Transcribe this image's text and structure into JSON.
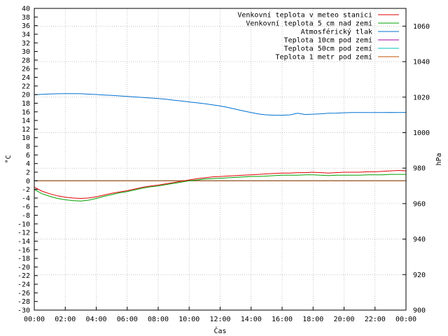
{
  "chart_data": {
    "type": "line",
    "xlabel": "Čas",
    "ylabel_left": "°C",
    "ylabel_right": "hPa",
    "x_ticks": [
      "00:00",
      "02:00",
      "04:00",
      "06:00",
      "08:00",
      "10:00",
      "12:00",
      "14:00",
      "16:00",
      "18:00",
      "20:00",
      "22:00",
      "00:00"
    ],
    "y_left_range": [
      -30,
      40
    ],
    "y_left_step": 2,
    "y_right_range": [
      900,
      1070
    ],
    "y_right_ticks": [
      900,
      920,
      940,
      960,
      980,
      1000,
      1020,
      1040,
      1060
    ],
    "grid": true,
    "legend_position": "top-right",
    "x_hours": [
      0,
      0.5,
      1,
      1.5,
      2,
      2.5,
      3,
      3.5,
      4,
      4.5,
      5,
      5.5,
      6,
      6.5,
      7,
      7.5,
      8,
      8.5,
      9,
      9.5,
      10,
      10.5,
      11,
      11.5,
      12,
      12.5,
      13,
      13.5,
      14,
      14.5,
      15,
      15.5,
      16,
      16.5,
      17,
      17.5,
      18,
      18.5,
      19,
      19.5,
      20,
      20.5,
      21,
      21.5,
      22,
      22.5,
      23,
      23.5,
      24
    ],
    "series": [
      {
        "name": "Venkovní teplota v meteo stanici",
        "color": "#e00000",
        "axis": "left",
        "values": [
          -1.5,
          -2.4,
          -3.0,
          -3.5,
          -3.8,
          -4.0,
          -4.1,
          -4.0,
          -3.7,
          -3.3,
          -2.9,
          -2.6,
          -2.3,
          -1.9,
          -1.5,
          -1.2,
          -1.0,
          -0.7,
          -0.4,
          -0.1,
          0.2,
          0.5,
          0.7,
          0.9,
          1.0,
          1.1,
          1.2,
          1.3,
          1.4,
          1.5,
          1.6,
          1.7,
          1.8,
          1.8,
          1.9,
          1.9,
          2.0,
          1.9,
          1.8,
          1.9,
          2.0,
          2.0,
          2.0,
          2.1,
          2.1,
          2.2,
          2.3,
          2.4,
          2.3
        ]
      },
      {
        "name": "Venkovní teplota 5 cm nad zemí",
        "color": "#00a000",
        "axis": "left",
        "values": [
          -2.0,
          -3.0,
          -3.6,
          -4.1,
          -4.4,
          -4.6,
          -4.7,
          -4.5,
          -4.1,
          -3.6,
          -3.2,
          -2.8,
          -2.5,
          -2.1,
          -1.7,
          -1.4,
          -1.2,
          -0.9,
          -0.6,
          -0.3,
          0.0,
          0.2,
          0.4,
          0.5,
          0.6,
          0.7,
          0.8,
          0.9,
          1.0,
          1.0,
          1.1,
          1.2,
          1.3,
          1.3,
          1.3,
          1.4,
          1.4,
          1.3,
          1.2,
          1.3,
          1.3,
          1.3,
          1.3,
          1.4,
          1.4,
          1.4,
          1.5,
          1.5,
          1.5
        ]
      },
      {
        "name": "Atmosférický tlak",
        "color": "#0070d0",
        "axis": "right",
        "values": [
          1021.4,
          1021.6,
          1021.8,
          1021.9,
          1022.0,
          1022.0,
          1021.9,
          1021.7,
          1021.5,
          1021.2,
          1021.0,
          1020.7,
          1020.4,
          1020.1,
          1019.8,
          1019.5,
          1019.2,
          1018.8,
          1018.3,
          1017.8,
          1017.3,
          1016.8,
          1016.3,
          1015.7,
          1015.0,
          1014.2,
          1013.2,
          1012.2,
          1011.3,
          1010.5,
          1010.0,
          1009.8,
          1009.8,
          1010.0,
          1010.9,
          1010.2,
          1010.4,
          1010.6,
          1010.9,
          1011.0,
          1011.2,
          1011.3,
          1011.3,
          1011.3,
          1011.3,
          1011.3,
          1011.4,
          1011.3,
          1011.4
        ]
      },
      {
        "name": "Teplota 10cm pod zemí",
        "color": "#a000a0",
        "axis": "left",
        "values": [
          0,
          0,
          0,
          0,
          0,
          0,
          0,
          0,
          0,
          0,
          0,
          0,
          0,
          0,
          0,
          0,
          0,
          0,
          0,
          0,
          0,
          0,
          0,
          0,
          0,
          0,
          0,
          0,
          0,
          0,
          0,
          0,
          0,
          0,
          0,
          0,
          0,
          0,
          0,
          0,
          0,
          0,
          0,
          0,
          0,
          0,
          0,
          0,
          0
        ]
      },
      {
        "name": "Teplota 50cm pod zemí",
        "color": "#00c0c0",
        "axis": "left",
        "values": [
          0,
          0,
          0,
          0,
          0,
          0,
          0,
          0,
          0,
          0,
          0,
          0,
          0,
          0,
          0,
          0,
          0,
          0,
          0,
          0,
          0,
          0,
          0,
          0,
          0,
          0,
          0,
          0,
          0,
          0,
          0,
          0,
          0,
          0,
          0,
          0,
          0,
          0,
          0,
          0,
          0,
          0,
          0,
          0,
          0,
          0,
          0,
          0,
          0
        ]
      },
      {
        "name": "Teplota 1 metr pod zemí",
        "color": "#c05000",
        "axis": "left",
        "values": [
          0,
          0,
          0,
          0,
          0,
          0,
          0,
          0,
          0,
          0,
          0,
          0,
          0,
          0,
          0,
          0,
          0,
          0,
          0,
          0,
          0,
          0,
          0,
          0,
          0,
          0,
          0,
          0,
          0,
          0,
          0,
          0,
          0,
          0,
          0,
          0,
          0,
          0,
          0,
          0,
          0,
          0,
          0,
          0,
          0,
          0,
          0,
          0,
          0
        ]
      }
    ]
  }
}
